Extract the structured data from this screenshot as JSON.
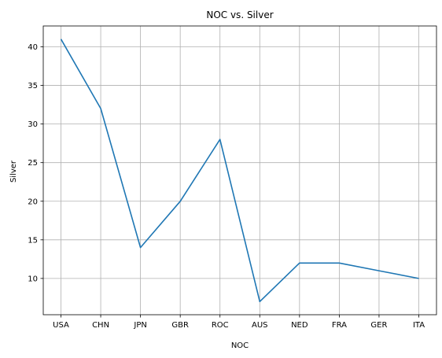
{
  "chart_data": {
    "type": "line",
    "title": "NOC vs. Silver",
    "xlabel": "NOC",
    "ylabel": "Silver",
    "categories": [
      "USA",
      "CHN",
      "JPN",
      "GBR",
      "ROC",
      "AUS",
      "NED",
      "FRA",
      "GER",
      "ITA"
    ],
    "series": [
      {
        "values": [
          41,
          32,
          14,
          20,
          28,
          7,
          12,
          12,
          11,
          10
        ]
      }
    ],
    "ylim": [
      5.3,
      42.7
    ],
    "yticks": [
      10,
      15,
      20,
      25,
      30,
      35,
      40
    ],
    "grid": true,
    "line_color": "#1f77b4",
    "grid_color": "#b0b0b0"
  }
}
